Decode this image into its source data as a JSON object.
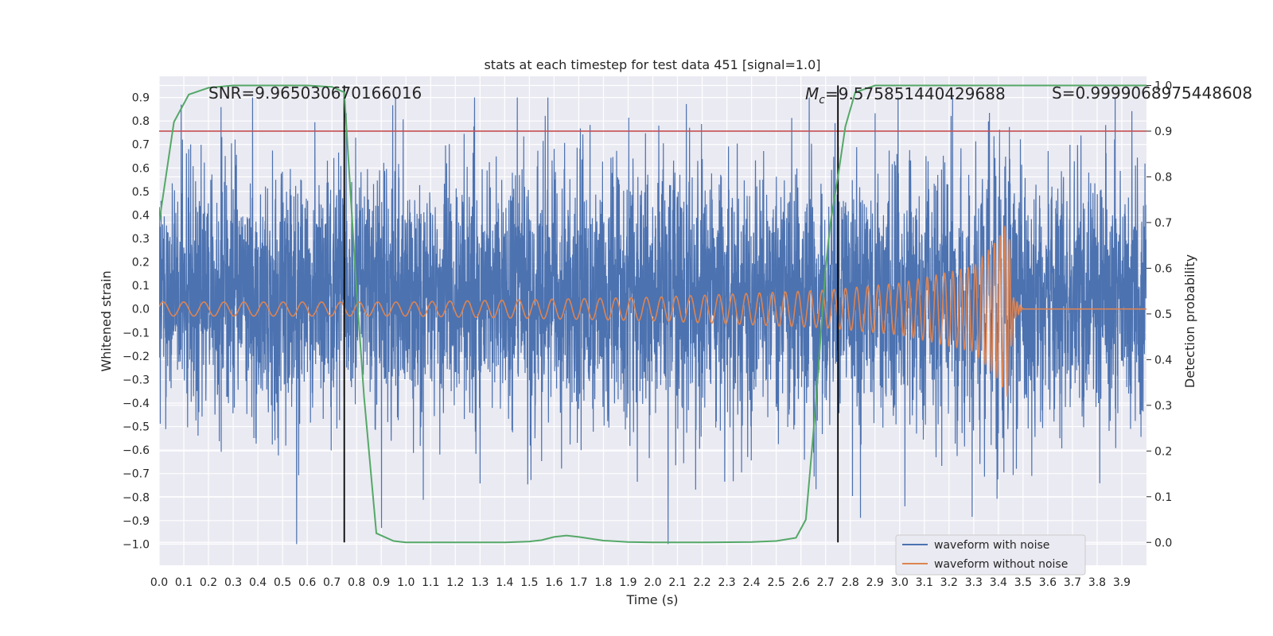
{
  "chart_data": {
    "type": "line",
    "title": "stats at each timestep for test data 451 [signal=1.0]",
    "xlabel": "Time (s)",
    "ylabel": "Whitened strain",
    "ylabel_right": "Detection probability",
    "xlim": [
      0.0,
      4.0
    ],
    "ylim": [
      -1.09,
      0.99
    ],
    "ylim_right": [
      -0.05,
      1.02
    ],
    "x_ticks": [
      "0.0",
      "0.1",
      "0.2",
      "0.3",
      "0.4",
      "0.5",
      "0.6",
      "0.7",
      "0.8",
      "0.9",
      "1.0",
      "1.1",
      "1.2",
      "1.3",
      "1.4",
      "1.5",
      "1.6",
      "1.7",
      "1.8",
      "1.9",
      "2.0",
      "2.1",
      "2.2",
      "2.3",
      "2.4",
      "2.5",
      "2.6",
      "2.7",
      "2.8",
      "2.9",
      "3.0",
      "3.1",
      "3.2",
      "3.3",
      "3.4",
      "3.5",
      "3.6",
      "3.7",
      "3.8",
      "3.9"
    ],
    "y_ticks": [
      "0.9",
      "0.8",
      "0.7",
      "0.6",
      "0.5",
      "0.4",
      "0.3",
      "0.2",
      "0.1",
      "0.0",
      "−0.1",
      "−0.2",
      "−0.3",
      "−0.4",
      "−0.5",
      "−0.6",
      "−0.7",
      "−0.8",
      "−0.9",
      "−1.0"
    ],
    "y_ticks_right": [
      "1.0",
      "0.9",
      "0.8",
      "0.7",
      "0.6",
      "0.5",
      "0.4",
      "0.3",
      "0.2",
      "0.1",
      "0.0"
    ],
    "grid": true,
    "legend_position": "lower-right",
    "colors": {
      "noise": "#4c72b0",
      "clean": "#dd8452",
      "probability": "#55a868",
      "threshold": "#c44e52",
      "marker": "#000000",
      "plot_bg": "#eaeaf2",
      "grid": "#ffffff"
    },
    "series": [
      {
        "name": "waveform with noise",
        "noise_amplitude_typical": 0.35,
        "range": [
          -1.0,
          0.9
        ]
      },
      {
        "name": "waveform without noise",
        "envelope": [
          [
            0.0,
            0.03
          ],
          [
            1.0,
            0.03
          ],
          [
            2.0,
            0.05
          ],
          [
            2.7,
            0.08
          ],
          [
            3.0,
            0.11
          ],
          [
            3.3,
            0.18
          ],
          [
            3.4,
            0.3
          ],
          [
            3.44,
            0.38
          ],
          [
            3.46,
            0.05
          ],
          [
            3.5,
            0.0
          ],
          [
            4.0,
            0.0
          ]
        ],
        "merger_time": 3.45
      },
      {
        "axis": "right",
        "x": [
          0.0,
          0.06,
          0.12,
          0.2,
          0.3,
          0.4,
          0.5,
          0.6,
          0.7,
          0.75,
          0.8,
          0.83,
          0.88,
          0.95,
          1.0,
          1.2,
          1.4,
          1.5,
          1.55,
          1.6,
          1.65,
          1.7,
          1.8,
          1.9,
          2.0,
          2.2,
          2.4,
          2.5,
          2.58,
          2.62,
          2.66,
          2.7,
          2.72,
          2.75,
          2.78,
          2.82,
          2.9,
          3.0,
          3.2,
          3.5,
          4.0
        ],
        "values": [
          0.7,
          0.92,
          0.98,
          0.995,
          1.0,
          1.0,
          1.0,
          1.0,
          0.997,
          0.985,
          0.55,
          0.32,
          0.02,
          0.003,
          0.0,
          0.0,
          0.0,
          0.002,
          0.005,
          0.012,
          0.015,
          0.012,
          0.004,
          0.001,
          0.0,
          0.0,
          0.001,
          0.003,
          0.01,
          0.05,
          0.3,
          0.6,
          0.7,
          0.8,
          0.91,
          0.985,
          1.0,
          1.0,
          1.0,
          1.0,
          1.0
        ]
      }
    ],
    "threshold_right": 0.9,
    "vertical_markers": [
      0.75,
      2.75
    ],
    "annotations": {
      "snr": "SNR=9.965030670166016",
      "mc_symbol": "M",
      "mc_subscript": "c",
      "mc_value": "=9.575851440429688",
      "s": "S=0.9999068975448608"
    }
  }
}
